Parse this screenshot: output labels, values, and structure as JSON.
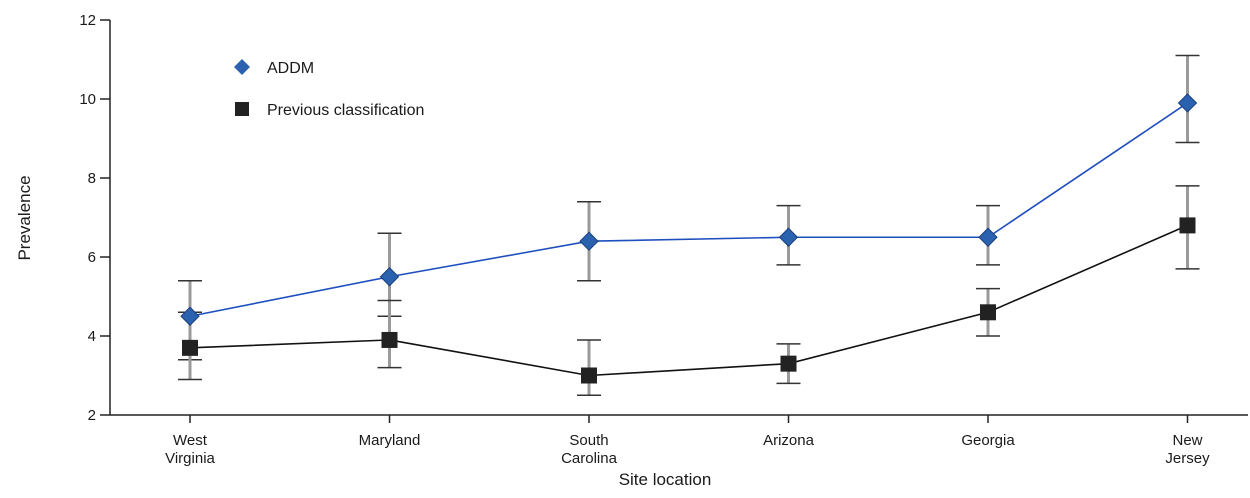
{
  "chart_data": {
    "type": "line",
    "title": "",
    "xlabel": "Site location",
    "ylabel": "Prevalence",
    "ylim": [
      2,
      12
    ],
    "yticks": [
      2,
      4,
      6,
      8,
      10,
      12
    ],
    "grid": false,
    "legend_position": "top-left",
    "categories": [
      [
        "West",
        "Virginia"
      ],
      [
        "Maryland"
      ],
      [
        "South",
        "Carolina"
      ],
      [
        "Arizona"
      ],
      [
        "Georgia"
      ],
      [
        "New",
        "Jersey"
      ]
    ],
    "series": [
      {
        "name": "ADDM",
        "marker": "diamond",
        "line_color": "#1f4fbf",
        "marker_color": "#2a62b0",
        "values": [
          4.5,
          5.5,
          6.4,
          6.5,
          6.5,
          9.9
        ],
        "err_low": [
          3.4,
          4.5,
          5.4,
          5.8,
          5.8,
          8.9
        ],
        "err_high": [
          5.4,
          6.6,
          7.4,
          7.3,
          7.3,
          11.1
        ]
      },
      {
        "name": "Previous classification",
        "marker": "square",
        "line_color": "#111111",
        "marker_color": "#222222",
        "values": [
          3.7,
          3.9,
          3.0,
          3.3,
          4.6,
          6.8
        ],
        "err_low": [
          2.9,
          3.2,
          2.5,
          2.8,
          4.0,
          5.7
        ],
        "err_high": [
          4.6,
          4.9,
          3.9,
          3.8,
          5.2,
          7.8
        ]
      }
    ],
    "errorbar_color": "#9a9a9a"
  }
}
